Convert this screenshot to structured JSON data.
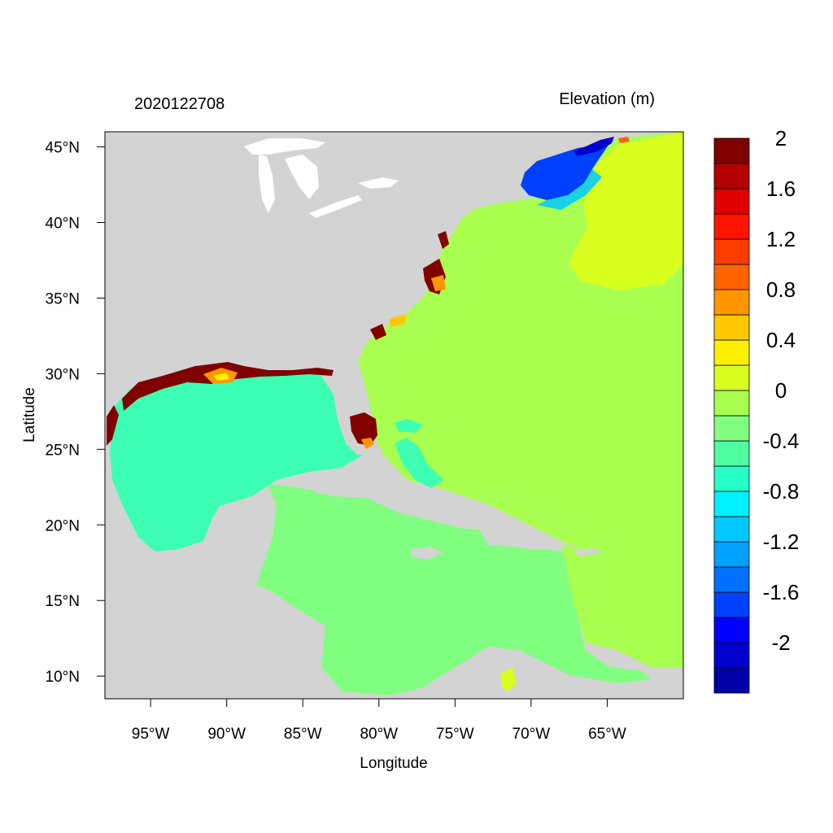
{
  "title_left": "2020122708",
  "title_right": "Elevation (m)",
  "xlabel": "Longitude",
  "ylabel": "Latitude",
  "lon_ticks": [
    {
      "value": -95,
      "label": "95°W"
    },
    {
      "value": -90,
      "label": "90°W"
    },
    {
      "value": -85,
      "label": "85°W"
    },
    {
      "value": -80,
      "label": "80°W"
    },
    {
      "value": -75,
      "label": "75°W"
    },
    {
      "value": -70,
      "label": "70°W"
    },
    {
      "value": -65,
      "label": "65°W"
    }
  ],
  "lat_ticks": [
    {
      "value": 10,
      "label": "10°N"
    },
    {
      "value": 15,
      "label": "15°N"
    },
    {
      "value": 20,
      "label": "20°N"
    },
    {
      "value": 25,
      "label": "25°N"
    },
    {
      "value": 30,
      "label": "30°N"
    },
    {
      "value": 35,
      "label": "35°N"
    },
    {
      "value": 40,
      "label": "40°N"
    },
    {
      "value": 45,
      "label": "45°N"
    }
  ],
  "extent": {
    "lon_min": -98,
    "lon_max": -60,
    "lat_min": 8.5,
    "lat_max": 46
  },
  "colorbar": {
    "colors": [
      "#0000a8",
      "#0000cd",
      "#0000ff",
      "#0040ff",
      "#0070ff",
      "#00a0ff",
      "#00c8ff",
      "#00f0ff",
      "#28ffc8",
      "#50ffa0",
      "#80ff80",
      "#a8ff50",
      "#d8ff20",
      "#fff000",
      "#ffc800",
      "#ff9600",
      "#ff6400",
      "#ff3c00",
      "#ff1400",
      "#e00000",
      "#b40000",
      "#800000"
    ],
    "labels": [
      "-2",
      "-1.6",
      "-1.2",
      "-0.8",
      "-0.4",
      "0",
      "0.4",
      "0.8",
      "1.2",
      "1.6",
      "2"
    ]
  },
  "colors": {
    "land": "#d3d3d3",
    "ocean_atlantic": "#a8ff50",
    "gulf": "#3cffb4",
    "caribbean": "#80ff80",
    "northeast": "#d8ff20",
    "gulf_of_maine": "#0040ff",
    "surge_high": "#800000"
  }
}
